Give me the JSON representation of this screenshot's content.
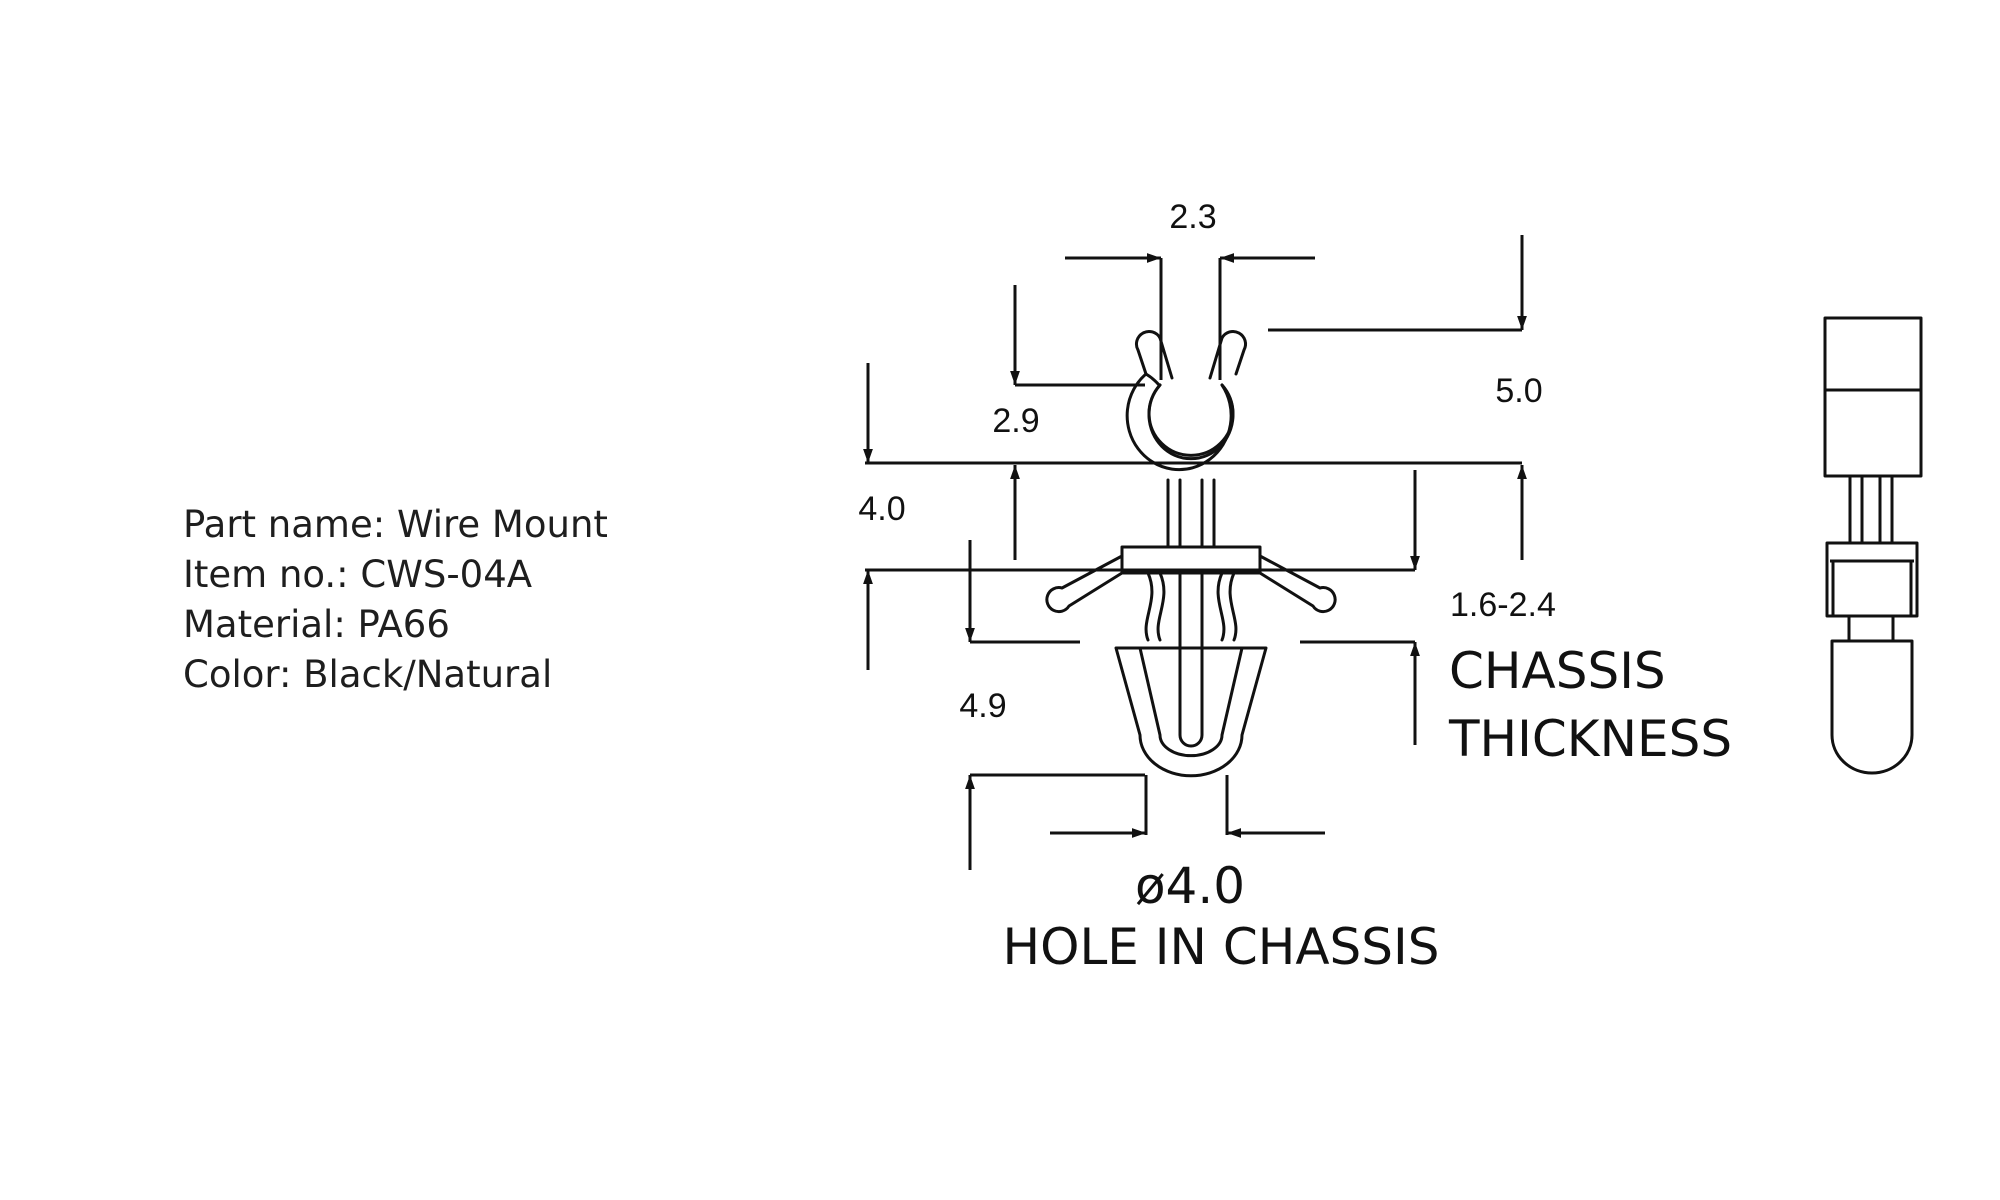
{
  "spec": {
    "part_name": "Part name: Wire Mount",
    "item_no": "Item no.: CWS-04A",
    "material": "Material: PA66",
    "color": "Color: Black/Natural"
  },
  "dimensions": {
    "gap_width": "2.3",
    "top_height": "5.0",
    "clip_depth": "2.9",
    "head_height": "4.0",
    "chassis_range": "1.6-2.4",
    "leg_length": "4.9",
    "hole_diameter": "ø4.0"
  },
  "notes": {
    "chassis_line1": "CHASSIS",
    "chassis_line2": "THICKNESS",
    "hole_label": "HOLE IN CHASSIS"
  },
  "colors": {
    "line": "#111111",
    "text": "#1e1e1e"
  }
}
